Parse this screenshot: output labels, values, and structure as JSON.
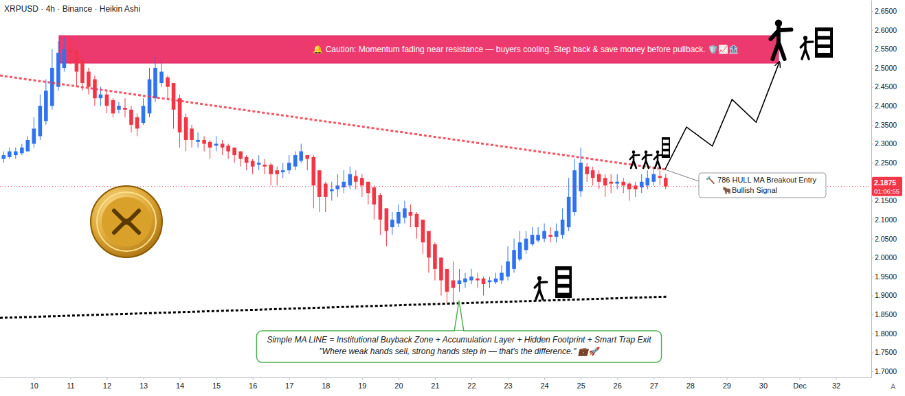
{
  "chart_data": {
    "type": "candlestick",
    "title": "XRPUSD · 4h · Binance · Heikin Ashi",
    "x": [
      9.17,
      9.33,
      9.5,
      9.67,
      9.83,
      10,
      10.17,
      10.33,
      10.5,
      10.67,
      10.83,
      11,
      11.17,
      11.33,
      11.5,
      11.67,
      11.83,
      12,
      12.17,
      12.33,
      12.5,
      12.67,
      12.83,
      13,
      13.17,
      13.33,
      13.5,
      13.67,
      13.83,
      14,
      14.17,
      14.33,
      14.5,
      14.67,
      14.83,
      15,
      15.17,
      15.33,
      15.5,
      15.67,
      15.83,
      16,
      16.17,
      16.33,
      16.5,
      16.67,
      16.83,
      17,
      17.17,
      17.33,
      17.5,
      17.67,
      17.83,
      18,
      18.17,
      18.33,
      18.5,
      18.67,
      18.83,
      19,
      19.17,
      19.33,
      19.5,
      19.67,
      19.83,
      20,
      20.17,
      20.33,
      20.5,
      20.67,
      20.83,
      21,
      21.17,
      21.33,
      21.5,
      21.67,
      21.83,
      22,
      22.17,
      22.33,
      22.5,
      22.67,
      22.83,
      23,
      23.17,
      23.33,
      23.5,
      23.67,
      23.83,
      24,
      24.17,
      24.33,
      24.5,
      24.67,
      24.83,
      25,
      25.17,
      25.33,
      25.5,
      25.67,
      25.83,
      26,
      26.17,
      26.33,
      26.5,
      26.67,
      26.83,
      27,
      27.17,
      27.33
    ],
    "open": [
      2.26,
      2.265,
      2.27,
      2.275,
      2.28,
      2.3,
      2.32,
      2.36,
      2.4,
      2.45,
      2.5,
      2.55,
      2.545,
      2.52,
      2.49,
      2.47,
      2.42,
      2.43,
      2.415,
      2.39,
      2.395,
      2.39,
      2.37,
      2.355,
      2.38,
      2.42,
      2.46,
      2.475,
      2.46,
      2.42,
      2.37,
      2.34,
      2.305,
      2.31,
      2.305,
      2.295,
      2.3,
      2.295,
      2.29,
      2.28,
      2.265,
      2.255,
      2.245,
      2.245,
      2.245,
      2.23,
      2.225,
      2.23,
      2.24,
      2.255,
      2.27,
      2.265,
      2.23,
      2.195,
      2.175,
      2.18,
      2.185,
      2.19,
      2.215,
      2.21,
      2.2,
      2.185,
      2.165,
      2.13,
      2.08,
      2.09,
      2.105,
      2.12,
      2.115,
      2.1,
      2.07,
      2.035,
      2.0,
      1.97,
      1.94,
      1.93,
      1.935,
      1.94,
      1.945,
      1.945,
      1.935,
      1.935,
      1.94,
      1.95,
      1.97,
      1.995,
      2.02,
      2.035,
      2.045,
      2.05,
      2.06,
      2.055,
      2.06,
      2.08,
      2.12,
      2.175,
      2.24,
      2.23,
      2.22,
      2.21,
      2.2,
      2.195,
      2.2,
      2.195,
      2.19,
      2.185,
      2.19,
      2.2,
      2.215,
      2.21
    ],
    "high": [
      2.28,
      2.29,
      2.29,
      2.3,
      2.32,
      2.37,
      2.43,
      2.47,
      2.55,
      2.57,
      2.58,
      2.57,
      2.55,
      2.53,
      2.5,
      2.48,
      2.45,
      2.44,
      2.42,
      2.41,
      2.42,
      2.4,
      2.38,
      2.42,
      2.5,
      2.53,
      2.52,
      2.48,
      2.46,
      2.43,
      2.38,
      2.35,
      2.33,
      2.32,
      2.31,
      2.32,
      2.31,
      2.3,
      2.29,
      2.28,
      2.27,
      2.26,
      2.27,
      2.26,
      2.25,
      2.24,
      2.25,
      2.27,
      2.28,
      2.3,
      2.27,
      2.27,
      2.23,
      2.2,
      2.2,
      2.22,
      2.23,
      2.24,
      2.23,
      2.22,
      2.2,
      2.19,
      2.17,
      2.13,
      2.12,
      2.14,
      2.15,
      2.14,
      2.12,
      2.1,
      2.07,
      2.04,
      2.0,
      1.97,
      1.99,
      1.97,
      1.96,
      1.97,
      1.96,
      1.95,
      1.95,
      1.96,
      1.98,
      2.03,
      2.05,
      2.07,
      2.07,
      2.08,
      2.08,
      2.09,
      2.08,
      2.09,
      2.13,
      2.21,
      2.26,
      2.29,
      2.25,
      2.24,
      2.23,
      2.22,
      2.22,
      2.22,
      2.21,
      2.2,
      2.2,
      2.22,
      2.23,
      2.24,
      2.23,
      2.22
    ],
    "low": [
      2.25,
      2.26,
      2.26,
      2.27,
      2.28,
      2.29,
      2.31,
      2.35,
      2.39,
      2.44,
      2.49,
      2.51,
      2.45,
      2.44,
      2.43,
      2.4,
      2.4,
      2.38,
      2.37,
      2.38,
      2.37,
      2.33,
      2.32,
      2.35,
      2.37,
      2.41,
      2.45,
      2.42,
      2.34,
      2.29,
      2.28,
      2.29,
      2.29,
      2.28,
      2.26,
      2.28,
      2.27,
      2.26,
      2.25,
      2.24,
      2.23,
      2.22,
      2.23,
      2.22,
      2.19,
      2.19,
      2.21,
      2.22,
      2.23,
      2.25,
      2.23,
      2.13,
      2.12,
      2.12,
      2.15,
      2.16,
      2.17,
      2.18,
      2.18,
      2.16,
      2.14,
      2.1,
      2.06,
      2.03,
      2.06,
      2.08,
      2.09,
      2.08,
      2.05,
      2.01,
      1.96,
      1.94,
      1.9,
      1.88,
      1.88,
      1.91,
      1.92,
      1.93,
      1.92,
      1.9,
      1.92,
      1.93,
      1.93,
      1.94,
      1.96,
      1.99,
      2.01,
      2.03,
      2.04,
      2.04,
      2.04,
      2.04,
      2.05,
      2.07,
      2.11,
      2.16,
      2.2,
      2.19,
      2.18,
      2.16,
      2.17,
      2.18,
      2.17,
      2.15,
      2.16,
      2.17,
      2.18,
      2.19,
      2.19,
      2.18
    ],
    "close": [
      2.27,
      2.28,
      2.28,
      2.29,
      2.31,
      2.34,
      2.4,
      2.44,
      2.5,
      2.54,
      2.55,
      2.54,
      2.49,
      2.46,
      2.45,
      2.42,
      2.43,
      2.4,
      2.38,
      2.4,
      2.39,
      2.35,
      2.34,
      2.4,
      2.47,
      2.5,
      2.49,
      2.45,
      2.39,
      2.33,
      2.31,
      2.31,
      2.31,
      2.3,
      2.29,
      2.3,
      2.29,
      2.28,
      2.27,
      2.26,
      2.25,
      2.24,
      2.25,
      2.24,
      2.22,
      2.22,
      2.23,
      2.25,
      2.27,
      2.28,
      2.26,
      2.19,
      2.16,
      2.16,
      2.18,
      2.19,
      2.2,
      2.22,
      2.2,
      2.19,
      2.17,
      2.14,
      2.1,
      2.07,
      2.1,
      2.12,
      2.13,
      2.11,
      2.08,
      2.04,
      2.0,
      1.97,
      1.94,
      1.91,
      1.92,
      1.94,
      1.945,
      1.95,
      1.94,
      1.93,
      1.94,
      1.945,
      1.96,
      1.99,
      2.02,
      2.04,
      2.05,
      2.06,
      2.06,
      2.07,
      2.055,
      2.07,
      2.1,
      2.16,
      2.23,
      2.25,
      2.22,
      2.21,
      2.2,
      2.19,
      2.195,
      2.2,
      2.19,
      2.18,
      2.18,
      2.2,
      2.21,
      2.22,
      2.21,
      2.1875
    ],
    "xlim": [
      9.07,
      32.97
    ],
    "xticks": [
      10,
      11,
      12,
      13,
      14,
      15,
      16,
      17,
      18,
      19,
      20,
      21,
      22,
      23,
      24,
      25,
      26,
      27,
      28,
      29,
      30,
      {
        "value": 31,
        "label": "Dec"
      },
      32
    ],
    "ylim": [
      1.684,
      2.679
    ],
    "yticks": [
      {
        "value": 1.7,
        "label": "1.7000"
      },
      {
        "value": 1.75,
        "label": "1.7500"
      },
      {
        "value": 1.8,
        "label": "1.8000"
      },
      {
        "value": 1.85,
        "label": "1.8500"
      },
      {
        "value": 1.9,
        "label": "1.9000"
      },
      {
        "value": 1.95,
        "label": "1.9500"
      },
      {
        "value": 2,
        "label": "2.0000"
      },
      {
        "value": 2.05,
        "label": "2.0500"
      },
      {
        "value": 2.1,
        "label": "2.1000"
      },
      {
        "value": 2.15,
        "label": "2.1500"
      },
      {
        "value": 2.25,
        "label": "2.2500"
      },
      {
        "value": 2.3,
        "label": "2.3000"
      },
      {
        "value": 2.35,
        "label": "2.3500"
      },
      {
        "value": 2.4,
        "label": "2.4000"
      },
      {
        "value": 2.45,
        "label": "2.4500"
      },
      {
        "value": 2.5,
        "label": "2.5000"
      },
      {
        "value": 2.55,
        "label": "2.5500"
      },
      {
        "value": 2.6,
        "label": "2.6000"
      },
      {
        "value": 2.65,
        "label": "2.6500"
      }
    ],
    "grid": false,
    "last_price": {
      "value": 2.1875,
      "label": "2.1875",
      "countdown": "01:06:55"
    },
    "series": [
      {
        "type": "line",
        "color": "#f23645",
        "line_style": "dotted",
        "x": [
          9.07,
          27.35
        ],
        "values": [
          2.48,
          2.232
        ]
      },
      {
        "type": "line",
        "color": "#000000",
        "line_style": "dotted",
        "x": [
          9.07,
          27.35
        ],
        "values": [
          1.841,
          1.897
        ]
      },
      {
        "type": "line",
        "color": "#000000",
        "line_style": "solid",
        "marker": "arrow",
        "x": [
          27.31,
          27.9,
          28.61,
          29.15,
          29.81,
          30.45
        ],
        "values": [
          2.232,
          2.344,
          2.294,
          2.417,
          2.357,
          2.516
        ]
      }
    ],
    "annotations": [
      {
        "text": "🔔 Caution: Momentum fading near resistance — buyers cooling. Step back & save money before pullback. 🛡️📈🏦"
      },
      {
        "text": [
          "🔨 786 HULL MA Breakout Entry",
          "🐂Bullish Signal"
        ]
      },
      {
        "text": [
          "Simple MA LINE = Institutional Buyback Zone + Accumulation Layer + Hidden Footprint + Smart Trap Exit",
          "\"Where weak hands sell, strong hands step in — that's the difference.\" 💼🚀"
        ]
      }
    ],
    "scale_button": "A"
  }
}
